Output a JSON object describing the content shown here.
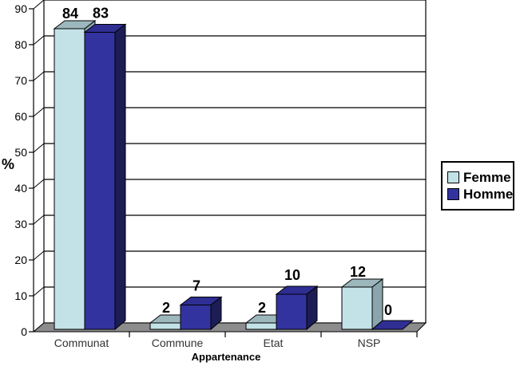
{
  "chart_data": {
    "type": "bar",
    "projection": "3d",
    "title": "",
    "xlabel": "Appartenance",
    "ylabel": "%",
    "ylim": [
      0,
      90
    ],
    "ytick_step": 10,
    "yticks": [
      "0",
      "10",
      "20",
      "30",
      "40",
      "50",
      "60",
      "70",
      "80",
      "90"
    ],
    "grid": true,
    "legend_position": "right",
    "categories": [
      "Communat",
      "Commune",
      "Etat",
      "NSP"
    ],
    "series": [
      {
        "name": "Femme",
        "values": [
          84,
          2,
          2,
          12
        ],
        "color": "#c2e2e8",
        "top_color": "#9db8bd",
        "side_color": "#8aa6ac"
      },
      {
        "name": "Homme",
        "values": [
          83,
          7,
          10,
          0
        ],
        "color": "#3333a0",
        "top_color": "#2e2e93",
        "side_color": "#1d1d55"
      }
    ],
    "colors": {
      "floor": "#8c8c8c",
      "wall": "#ffffff",
      "gridline": "#000000",
      "axis": "#000000",
      "value_label": "#000000",
      "tick_label": "#000000",
      "category_label": "#333333"
    }
  }
}
